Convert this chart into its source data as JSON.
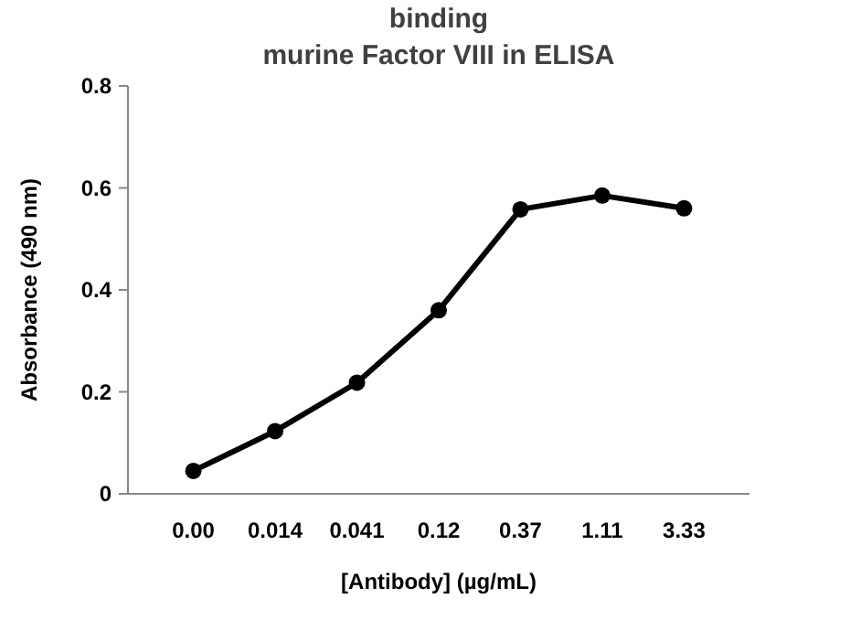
{
  "chart_data": {
    "type": "line",
    "title": "binding\nmurine Factor VIII in ELISA",
    "xlabel": "[Antibody] (µg/mL)",
    "ylabel": "Absorbance (490 nm)",
    "categories": [
      "0.00",
      "0.014",
      "0.041",
      "0.12",
      "0.37",
      "1.11",
      "3.33"
    ],
    "series": [
      {
        "color": "#000000",
        "values": [
          0.045,
          0.123,
          0.218,
          0.36,
          0.558,
          0.585,
          0.56
        ]
      }
    ],
    "ylim": [
      0,
      0.8
    ],
    "yticks": [
      0,
      0.2,
      0.4,
      0.6,
      0.8
    ],
    "grid": false,
    "marker": "circle",
    "line_style": "solid"
  }
}
